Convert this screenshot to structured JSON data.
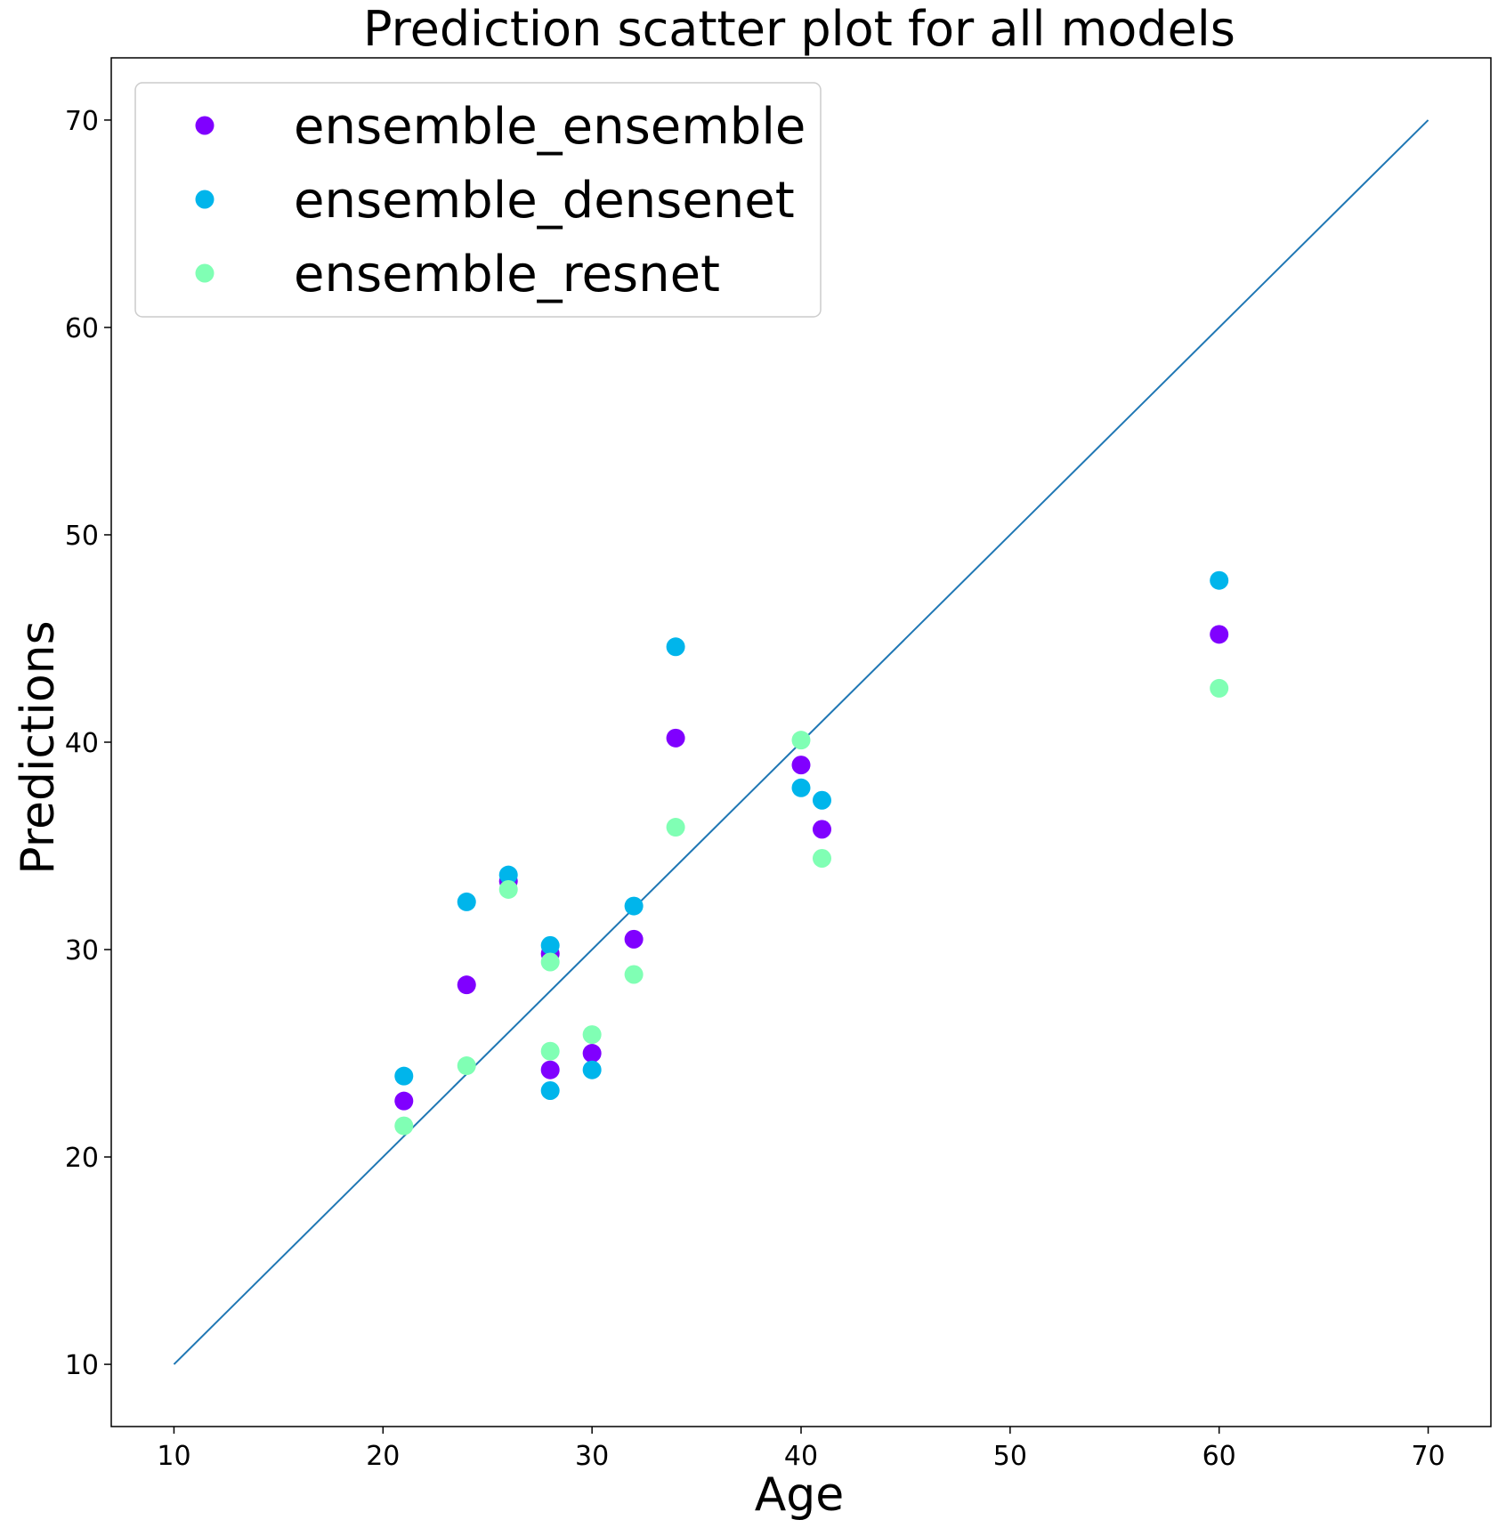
{
  "chart_data": {
    "type": "scatter",
    "title": "Prediction scatter plot for all models",
    "xlabel": "Age",
    "ylabel": "Predictions",
    "xlim": [
      7,
      73
    ],
    "ylim": [
      7,
      73
    ],
    "xticks": [
      10,
      20,
      30,
      40,
      50,
      60,
      70
    ],
    "yticks": [
      10,
      20,
      30,
      40,
      50,
      60,
      70
    ],
    "grid": false,
    "legend_position": "top-left",
    "reference_line": {
      "x": [
        10,
        70
      ],
      "y": [
        10,
        70
      ],
      "color": "#1f77b4"
    },
    "series": [
      {
        "name": "ensemble_ensemble",
        "color": "#8000ff",
        "points": [
          [
            21,
            22.7
          ],
          [
            24,
            28.3
          ],
          [
            26,
            33.3
          ],
          [
            28,
            29.8
          ],
          [
            28,
            24.2
          ],
          [
            30,
            25.0
          ],
          [
            32,
            30.5
          ],
          [
            34,
            40.2
          ],
          [
            40,
            38.9
          ],
          [
            41,
            35.8
          ],
          [
            60,
            45.2
          ]
        ]
      },
      {
        "name": "ensemble_densenet",
        "color": "#00b5eb",
        "points": [
          [
            21,
            23.9
          ],
          [
            24,
            32.3
          ],
          [
            26,
            33.6
          ],
          [
            28,
            30.2
          ],
          [
            28,
            23.2
          ],
          [
            30,
            24.2
          ],
          [
            32,
            32.1
          ],
          [
            34,
            44.6
          ],
          [
            40,
            37.8
          ],
          [
            41,
            37.2
          ],
          [
            60,
            47.8
          ]
        ]
      },
      {
        "name": "ensemble_resnet",
        "color": "#80ffb4",
        "points": [
          [
            21,
            21.5
          ],
          [
            24,
            24.4
          ],
          [
            26,
            32.9
          ],
          [
            28,
            29.4
          ],
          [
            28,
            25.1
          ],
          [
            30,
            25.9
          ],
          [
            32,
            28.8
          ],
          [
            34,
            35.9
          ],
          [
            40,
            40.1
          ],
          [
            41,
            34.4
          ],
          [
            60,
            42.6
          ]
        ]
      }
    ]
  }
}
